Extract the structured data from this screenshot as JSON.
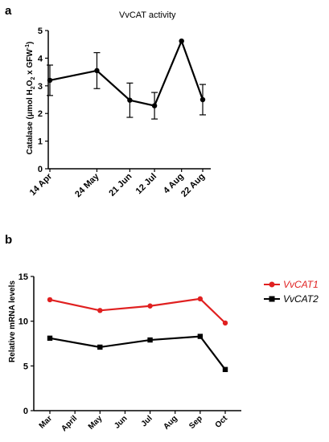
{
  "colors": {
    "axis": "#000000",
    "vvcat1": "#e02020",
    "vvcat2": "#000000"
  },
  "chart_data": [
    {
      "panel": "a",
      "type": "line",
      "title": "VvCAT activity",
      "ylabel": "Catalase (µmol H₂O₂ × GFW⁻¹)",
      "ylabel_parts": {
        "main": "Catalase  (μmol H",
        "sub": "2",
        "mid": "O",
        "sub2": "2",
        "end": " x GFW",
        "sup": "-1",
        "close": ")"
      },
      "xlabel": "",
      "categories": [
        "14 Apr",
        "24 May",
        "21 Jun",
        "12 Jul",
        "4 Aug",
        "22 Aug"
      ],
      "x_days": [
        0,
        40,
        68,
        89,
        112,
        130
      ],
      "ylim": [
        0,
        5
      ],
      "yticks": [
        "0",
        "1",
        "2",
        "3",
        "4",
        "5"
      ],
      "series": [
        {
          "values": [
            3.2,
            3.55,
            2.48,
            2.28,
            4.62,
            2.5
          ],
          "error": [
            0.55,
            0.65,
            0.62,
            0.48,
            0.0,
            0.55
          ]
        }
      ],
      "grid": false
    },
    {
      "panel": "b",
      "type": "line",
      "title": "",
      "ylabel": "Relative mRNA levels",
      "xlabel": "",
      "categories": [
        "Mar",
        "April",
        "May",
        "Jun",
        "Jul",
        "Aug",
        "Sep",
        "Oct"
      ],
      "ylim": [
        0,
        15
      ],
      "yticks": [
        "0",
        "5",
        "10",
        "15"
      ],
      "series": [
        {
          "name": "VvCAT1",
          "marker": "circle",
          "color": "#e02020",
          "x": [
            "Mar",
            "May",
            "Jul",
            "Sep",
            "Oct"
          ],
          "values": [
            12.4,
            11.2,
            11.7,
            12.5,
            9.8
          ]
        },
        {
          "name": "VvCAT2",
          "marker": "square",
          "color": "#000000",
          "x": [
            "Mar",
            "May",
            "Jul",
            "Sep",
            "Oct"
          ],
          "values": [
            8.1,
            7.1,
            7.9,
            8.3,
            4.6
          ]
        }
      ],
      "legend": "top-right",
      "grid": false
    }
  ]
}
